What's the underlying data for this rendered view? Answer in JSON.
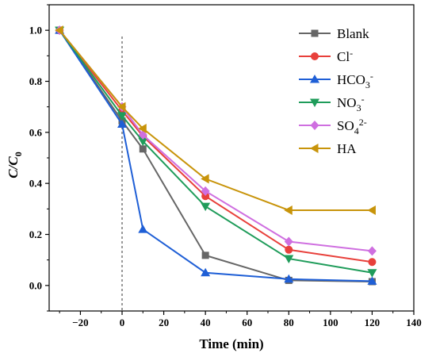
{
  "chart_data": {
    "type": "line",
    "xlabel": "Time (min)",
    "ylabel": {
      "main": "C/C",
      "sub": "0"
    },
    "xlim": [
      -35,
      140
    ],
    "ylim": [
      -0.1,
      1.1
    ],
    "xticks": [
      -20,
      0,
      20,
      40,
      60,
      80,
      100,
      120,
      140
    ],
    "yticks": [
      0.0,
      0.2,
      0.4,
      0.6,
      0.8,
      1.0
    ],
    "xtick_labels": [
      "−20",
      "0",
      "20",
      "40",
      "60",
      "80",
      "100",
      "120",
      "140"
    ],
    "ytick_labels": [
      "0.0",
      "0.2",
      "0.4",
      "0.6",
      "0.8",
      "1.0"
    ],
    "reference_line_x": 0,
    "grid": false,
    "legend_position": "top-right",
    "x": [
      -30,
      0,
      10,
      40,
      80,
      120
    ],
    "series": [
      {
        "name": "Blank",
        "label": {
          "base": "Blank",
          "sub": "",
          "sup": ""
        },
        "color": "#666666",
        "marker": "square",
        "values": [
          1.0,
          0.645,
          0.535,
          0.118,
          0.02,
          0.015
        ]
      },
      {
        "name": "Cl-",
        "label": {
          "base": "Cl",
          "sub": "",
          "sup": "-"
        },
        "color": "#e8403b",
        "marker": "circle",
        "values": [
          1.0,
          0.685,
          0.585,
          0.35,
          0.14,
          0.092
        ]
      },
      {
        "name": "HCO3-",
        "label": {
          "base": "HCO",
          "sub": "3",
          "sup": "-"
        },
        "color": "#1f5fd6",
        "marker": "triangle-up",
        "values": [
          1.0,
          0.632,
          0.22,
          0.05,
          0.025,
          0.017
        ]
      },
      {
        "name": "NO3-",
        "label": {
          "base": "NO",
          "sub": "3",
          "sup": "-"
        },
        "color": "#1f9c5a",
        "marker": "triangle-down",
        "values": [
          1.0,
          0.665,
          0.565,
          0.31,
          0.105,
          0.05
        ]
      },
      {
        "name": "SO42-",
        "label": {
          "base": "SO",
          "sub": "4",
          "sup": "2-"
        },
        "color": "#cf6fe0",
        "marker": "diamond",
        "values": [
          1.0,
          0.7,
          0.59,
          0.37,
          0.172,
          0.135
        ]
      },
      {
        "name": "HA",
        "label": {
          "base": "HA",
          "sub": "",
          "sup": ""
        },
        "color": "#c8940a",
        "marker": "triangle-left",
        "values": [
          1.0,
          0.7,
          0.615,
          0.418,
          0.295,
          0.295
        ]
      }
    ]
  }
}
